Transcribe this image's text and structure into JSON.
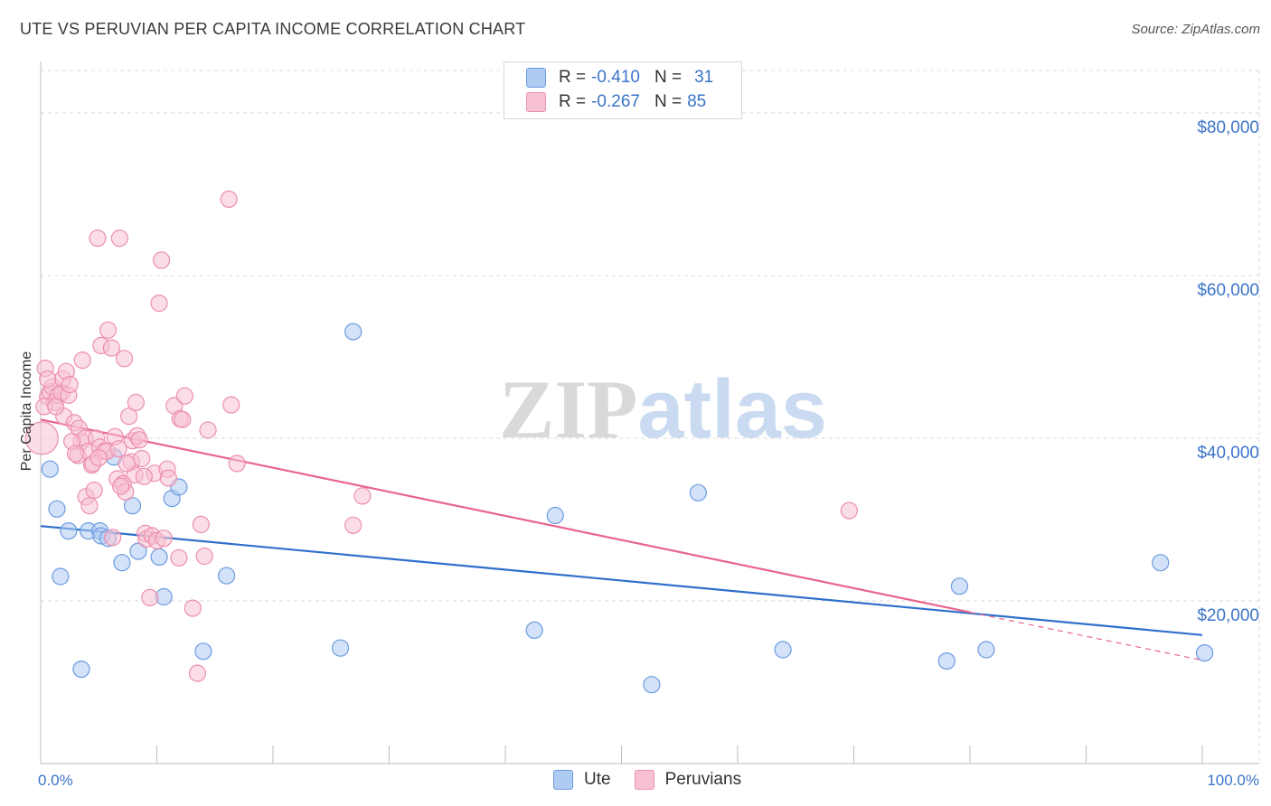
{
  "title": "UTE VS PERUVIAN PER CAPITA INCOME CORRELATION CHART",
  "source": "Source: ZipAtlas.com",
  "watermark": {
    "left": "ZIP",
    "right": "atlas"
  },
  "legend": {
    "rows": [
      {
        "r_label": "R =",
        "r_value": "-0.410",
        "n_label": "N =",
        "n_value": "31"
      },
      {
        "r_label": "R =",
        "r_value": "-0.267",
        "n_label": "N =",
        "n_value": "85"
      }
    ],
    "bottom": [
      "Ute",
      "Peruvians"
    ]
  },
  "colors": {
    "ute_fill": "#aecbf2",
    "ute_stroke": "#6b9be0",
    "ute_line": "#2f6fcc",
    "peru_fill": "#f8c1d2",
    "peru_stroke": "#ec8fae",
    "peru_line": "#e8648e",
    "tick": "#3b74c8",
    "grid": "#d9d9d9"
  },
  "chart_data": {
    "type": "scatter",
    "title": "UTE VS PERUVIAN PER CAPITA INCOME CORRELATION CHART",
    "xlabel": "",
    "ylabel": "Per Capita Income",
    "xlim": [
      0,
      100
    ],
    "ylim": [
      0,
      85000
    ],
    "x_tick_labels": [
      "0.0%",
      "100.0%"
    ],
    "y_ticks": [
      20000,
      40000,
      60000,
      80000
    ],
    "y_tick_labels": [
      "$20,000",
      "$40,000",
      "$60,000",
      "$80,000"
    ],
    "series": [
      {
        "name": "Ute",
        "r": -0.41,
        "n": 31,
        "trend": {
          "x0": 0,
          "y0": 29200,
          "x1": 100,
          "y1": 15800
        },
        "points": [
          [
            0.8,
            36200
          ],
          [
            1.4,
            31300
          ],
          [
            1.7,
            23000
          ],
          [
            2.4,
            28600
          ],
          [
            3.5,
            11600
          ],
          [
            4.1,
            28600
          ],
          [
            5.1,
            28600
          ],
          [
            5.2,
            28000
          ],
          [
            5.8,
            27700
          ],
          [
            6.3,
            37700
          ],
          [
            7.0,
            24700
          ],
          [
            7.9,
            31700
          ],
          [
            8.4,
            26100
          ],
          [
            10.2,
            25400
          ],
          [
            10.6,
            20500
          ],
          [
            11.3,
            32600
          ],
          [
            11.9,
            34000
          ],
          [
            14.0,
            13800
          ],
          [
            16.0,
            23100
          ],
          [
            25.8,
            14200
          ],
          [
            26.9,
            53100
          ],
          [
            42.5,
            16400
          ],
          [
            44.3,
            30500
          ],
          [
            52.6,
            9700
          ],
          [
            56.6,
            33300
          ],
          [
            63.9,
            14000
          ],
          [
            79.1,
            21800
          ],
          [
            81.4,
            14000
          ],
          [
            78.0,
            12600
          ],
          [
            96.4,
            24700
          ],
          [
            100.2,
            13600
          ]
        ]
      },
      {
        "name": "Peruvians",
        "r": -0.267,
        "n": 85,
        "trend": {
          "x0": 0,
          "y0": 42300,
          "x1": 80,
          "y1": 18600,
          "dash_x1": 100,
          "dash_y1": 12700
        },
        "points": [
          [
            0.1,
            40000
          ],
          [
            0.4,
            48600
          ],
          [
            0.6,
            45100
          ],
          [
            0.8,
            45700
          ],
          [
            1.0,
            46300
          ],
          [
            1.2,
            44400
          ],
          [
            1.5,
            45300
          ],
          [
            1.8,
            45600
          ],
          [
            1.9,
            47300
          ],
          [
            2.0,
            42700
          ],
          [
            2.2,
            48200
          ],
          [
            2.4,
            45300
          ],
          [
            2.5,
            46600
          ],
          [
            2.9,
            41900
          ],
          [
            3.2,
            37900
          ],
          [
            3.3,
            41200
          ],
          [
            3.5,
            39600
          ],
          [
            3.6,
            49600
          ],
          [
            3.8,
            40000
          ],
          [
            3.9,
            32800
          ],
          [
            4.1,
            38400
          ],
          [
            4.2,
            31700
          ],
          [
            4.4,
            36700
          ],
          [
            4.5,
            36900
          ],
          [
            4.6,
            33600
          ],
          [
            4.8,
            40000
          ],
          [
            4.9,
            64600
          ],
          [
            5.1,
            38900
          ],
          [
            5.2,
            51400
          ],
          [
            5.5,
            38400
          ],
          [
            5.7,
            38400
          ],
          [
            5.8,
            53300
          ],
          [
            6.1,
            51100
          ],
          [
            6.2,
            27800
          ],
          [
            6.4,
            40200
          ],
          [
            6.6,
            35000
          ],
          [
            6.7,
            38700
          ],
          [
            6.8,
            64600
          ],
          [
            7.1,
            34400
          ],
          [
            7.2,
            49800
          ],
          [
            7.3,
            33400
          ],
          [
            7.6,
            42700
          ],
          [
            7.8,
            37100
          ],
          [
            7.9,
            39700
          ],
          [
            8.1,
            35500
          ],
          [
            8.2,
            44400
          ],
          [
            8.3,
            40300
          ],
          [
            8.5,
            39800
          ],
          [
            8.7,
            37500
          ],
          [
            9.0,
            28300
          ],
          [
            9.1,
            27600
          ],
          [
            9.4,
            20400
          ],
          [
            9.6,
            28000
          ],
          [
            9.8,
            35700
          ],
          [
            10.0,
            27400
          ],
          [
            10.2,
            56600
          ],
          [
            10.4,
            61900
          ],
          [
            10.9,
            36200
          ],
          [
            11.0,
            35100
          ],
          [
            11.5,
            44000
          ],
          [
            11.9,
            25300
          ],
          [
            12.0,
            42400
          ],
          [
            12.2,
            42300
          ],
          [
            12.4,
            45200
          ],
          [
            13.1,
            19100
          ],
          [
            13.5,
            11100
          ],
          [
            13.8,
            29400
          ],
          [
            14.1,
            25500
          ],
          [
            14.4,
            41000
          ],
          [
            16.2,
            69400
          ],
          [
            16.4,
            44100
          ],
          [
            16.9,
            36900
          ],
          [
            26.9,
            29300
          ],
          [
            27.7,
            32900
          ],
          [
            69.6,
            31100
          ],
          [
            0.3,
            43900
          ],
          [
            0.6,
            47300
          ],
          [
            1.3,
            43900
          ],
          [
            2.7,
            39600
          ],
          [
            3.0,
            38100
          ],
          [
            5.0,
            37600
          ],
          [
            6.9,
            34100
          ],
          [
            7.4,
            36900
          ],
          [
            8.9,
            35300
          ],
          [
            10.6,
            27700
          ]
        ]
      }
    ]
  }
}
